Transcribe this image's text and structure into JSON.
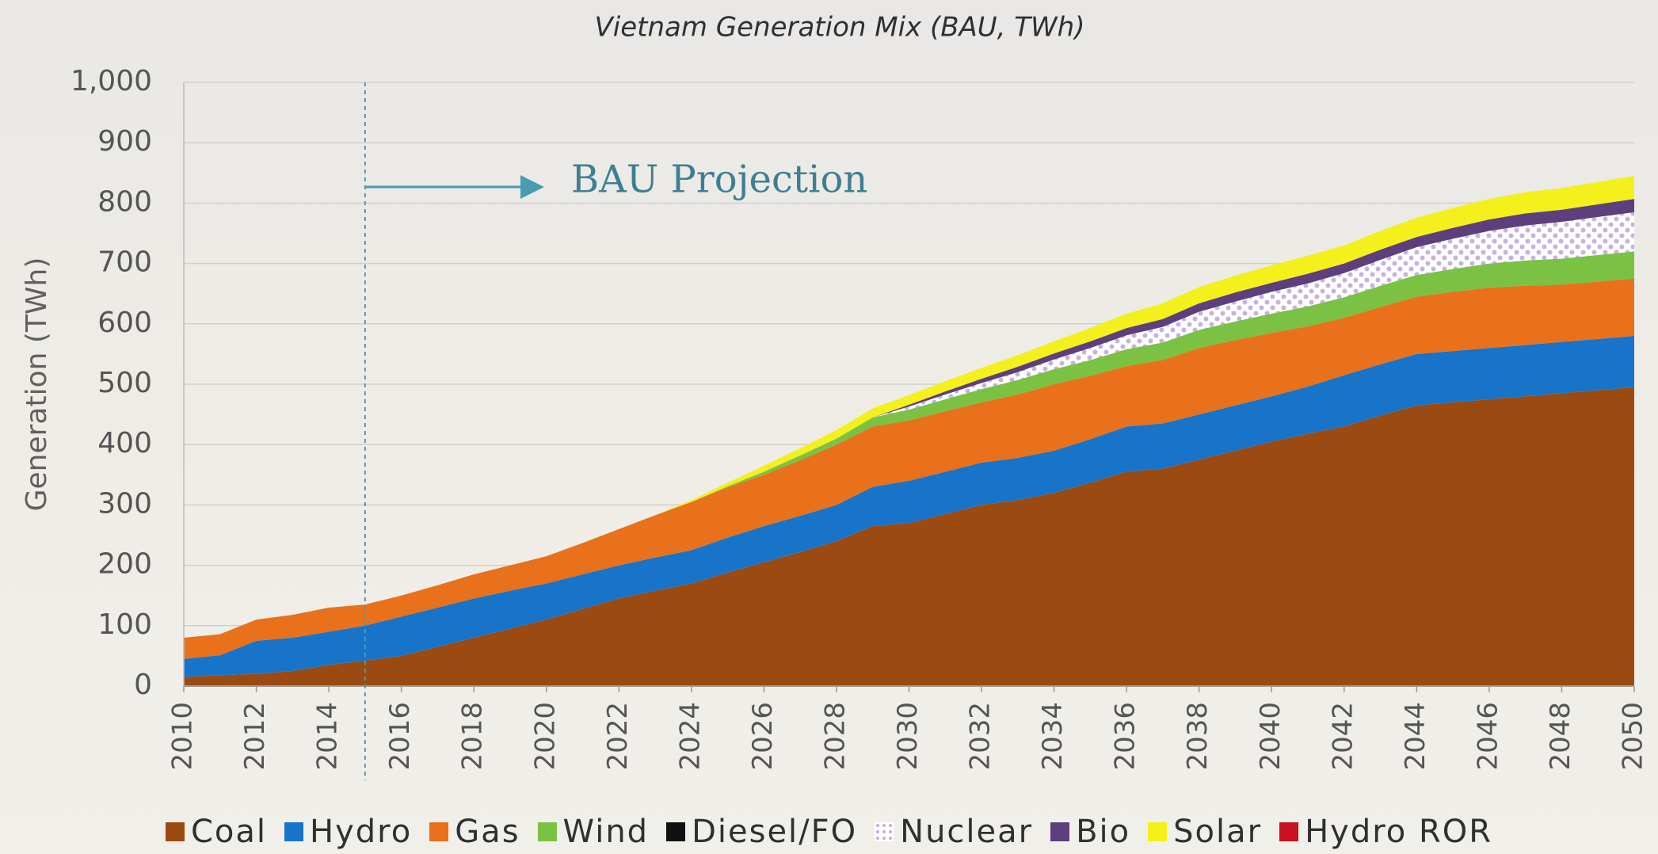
{
  "chart_data": {
    "type": "stacked-area",
    "title": "Vietnam Generation Mix (BAU, TWh)",
    "y_label": "Generation (TWh)",
    "annotations": [
      {
        "text": "BAU Projection",
        "x": 2015
      }
    ],
    "x": [
      2010,
      2011,
      2012,
      2013,
      2014,
      2015,
      2016,
      2017,
      2018,
      2019,
      2020,
      2021,
      2022,
      2023,
      2024,
      2025,
      2026,
      2027,
      2028,
      2029,
      2030,
      2031,
      2032,
      2033,
      2034,
      2035,
      2036,
      2037,
      2038,
      2039,
      2040,
      2041,
      2042,
      2043,
      2044,
      2045,
      2046,
      2047,
      2048,
      2049,
      2050
    ],
    "xlim": [
      2010,
      2050
    ],
    "xticks": [
      2010,
      2012,
      2014,
      2016,
      2018,
      2020,
      2022,
      2024,
      2026,
      2028,
      2030,
      2032,
      2034,
      2036,
      2038,
      2040,
      2042,
      2044,
      2046,
      2048,
      2050
    ],
    "ylim": [
      0,
      1000
    ],
    "yticks": [
      0,
      100,
      200,
      300,
      400,
      500,
      600,
      700,
      800,
      900,
      {
        "value": 1000,
        "label": "1,000"
      }
    ],
    "grid": true,
    "legend": "bottom",
    "series": [
      {
        "name": "Coal",
        "color": "#9b4a12",
        "values": [
          15,
          18,
          20,
          25,
          35,
          42,
          50,
          65,
          80,
          95,
          110,
          128,
          145,
          158,
          170,
          188,
          205,
          222,
          240,
          265,
          270,
          285,
          300,
          308,
          320,
          337,
          355,
          360,
          375,
          390,
          405,
          418,
          430,
          448,
          465,
          470,
          475,
          480,
          485,
          490,
          495
        ]
      },
      {
        "name": "Hydro",
        "color": "#1874c9",
        "values": [
          30,
          33,
          55,
          55,
          55,
          58,
          65,
          65,
          65,
          63,
          60,
          57,
          55,
          55,
          55,
          58,
          60,
          60,
          60,
          65,
          70,
          70,
          70,
          70,
          70,
          72,
          75,
          75,
          75,
          75,
          75,
          78,
          85,
          85,
          85,
          85,
          85,
          85,
          85,
          85,
          85
        ]
      },
      {
        "name": "Gas",
        "color": "#e9711b",
        "values": [
          35,
          35,
          35,
          38,
          40,
          35,
          35,
          37,
          40,
          42,
          45,
          52,
          60,
          70,
          80,
          83,
          85,
          92,
          100,
          100,
          100,
          100,
          100,
          105,
          110,
          105,
          100,
          105,
          110,
          108,
          105,
          100,
          95,
          95,
          95,
          98,
          100,
          98,
          95,
          95,
          95
        ]
      },
      {
        "name": "Wind",
        "color": "#7bc143",
        "values": [
          0,
          0,
          0,
          0,
          0,
          0,
          0,
          0,
          0,
          0,
          0,
          0,
          0,
          0,
          0,
          2,
          5,
          8,
          10,
          15,
          18,
          20,
          22,
          24,
          25,
          26,
          28,
          29,
          30,
          31,
          32,
          33,
          34,
          35,
          36,
          38,
          40,
          42,
          43,
          44,
          45
        ]
      },
      {
        "name": "Diesel/FO",
        "color": "#111111",
        "values": [
          0,
          0,
          0,
          0,
          0,
          0,
          0,
          0,
          0,
          0,
          0,
          0,
          0,
          0,
          0,
          0,
          0,
          0,
          0,
          0,
          0,
          0,
          0,
          0,
          0,
          0,
          0,
          0,
          0,
          0,
          0,
          0,
          0,
          0,
          0,
          0,
          0,
          0,
          0,
          0,
          0
        ]
      },
      {
        "name": "Nuclear",
        "color": "#c6b1e2",
        "hatch": true,
        "values": [
          0,
          0,
          0,
          0,
          0,
          0,
          0,
          0,
          0,
          0,
          0,
          0,
          0,
          0,
          0,
          0,
          0,
          0,
          0,
          0,
          5,
          8,
          10,
          13,
          16,
          20,
          23,
          26,
          30,
          33,
          36,
          38,
          40,
          43,
          46,
          50,
          54,
          58,
          61,
          63,
          65
        ]
      },
      {
        "name": "Bio",
        "color": "#5c3f7c",
        "values": [
          0,
          0,
          0,
          0,
          0,
          0,
          0,
          0,
          0,
          0,
          0,
          0,
          0,
          0,
          0,
          0,
          0,
          0,
          0,
          0,
          3,
          5,
          7,
          9,
          10,
          11,
          12,
          13,
          14,
          15,
          15,
          16,
          16,
          17,
          17,
          18,
          19,
          20,
          20,
          21,
          22
        ]
      },
      {
        "name": "Solar",
        "color": "#f4f01c",
        "values": [
          0,
          0,
          0,
          0,
          0,
          0,
          0,
          0,
          0,
          0,
          0,
          0,
          0,
          0,
          3,
          6,
          10,
          12,
          14,
          15,
          16,
          17,
          18,
          19,
          20,
          22,
          24,
          26,
          27,
          28,
          29,
          30,
          30,
          31,
          32,
          33,
          34,
          35,
          36,
          37,
          38
        ]
      },
      {
        "name": "Hydro ROR",
        "color": "#c8101e",
        "values": [
          0,
          0,
          0,
          0,
          0,
          0,
          0,
          0,
          0,
          0,
          0,
          0,
          0,
          0,
          0,
          0,
          0,
          0,
          0,
          0,
          0,
          0,
          0,
          0,
          0,
          0,
          0,
          0,
          0,
          0,
          0,
          0,
          0,
          0,
          0,
          0,
          0,
          0,
          0,
          0,
          0
        ]
      }
    ]
  }
}
